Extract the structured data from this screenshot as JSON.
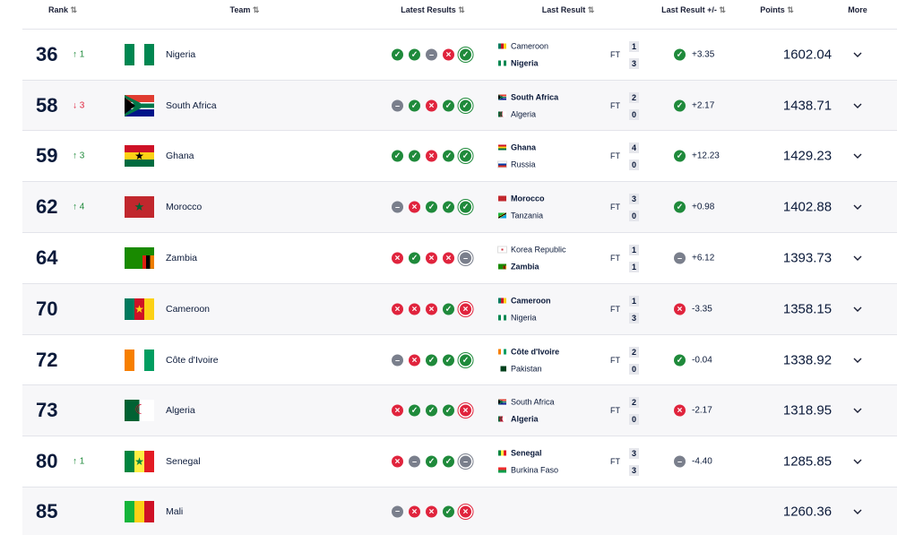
{
  "header": {
    "columns": [
      "Rank",
      "Team",
      "Latest Results",
      "Last Result",
      "Last Result +/-",
      "Points",
      "More"
    ]
  },
  "rows": [
    {
      "rank": 36,
      "change": 1,
      "team": "Nigeria",
      "last": {
        "home": "Cameroon",
        "away": "Nigeria",
        "status": "FT",
        "home_score": 1,
        "away_score": 3
      },
      "diff": "+3.35",
      "points": 1602.04
    },
    {
      "rank": 58,
      "change": 3,
      "team": "South Africa",
      "last": {
        "home": "South Africa",
        "away": "Algeria",
        "status": "FT",
        "home_score": 2,
        "away_score": 0
      },
      "diff": "+2.17",
      "points": 1438.71
    },
    {
      "rank": 59,
      "change": 3,
      "team": "Ghana",
      "last": {
        "home": "Ghana",
        "away": "Russia",
        "status": "FT",
        "home_score": 4,
        "away_score": 0
      },
      "diff": "+12.23",
      "points": 1429.23
    },
    {
      "rank": 62,
      "change": 4,
      "team": "Morocco",
      "last": {
        "home": "Morocco",
        "away": "Tanzania",
        "status": "FT",
        "home_score": 3,
        "away_score": 0
      },
      "diff": "+0.98",
      "points": 1402.88
    },
    {
      "rank": 64,
      "team": "Zambia",
      "last": {
        "home": "Korea Republic",
        "away": "Zambia",
        "status": "FT",
        "home_score": 1,
        "away_score": 1
      },
      "diff": "+6.12",
      "points": 1393.73
    },
    {
      "rank": 70,
      "team": "Cameroon",
      "last": {
        "home": "Cameroon",
        "away": "Nigeria",
        "status": "FT",
        "home_score": 1,
        "away_score": 3
      },
      "diff": "-3.35",
      "points": 1358.15
    },
    {
      "rank": 72,
      "team": "Côte d'Ivoire",
      "last": {
        "home": "Côte d'Ivoire",
        "away": "Pakistan",
        "status": "FT",
        "home_score": 2,
        "away_score": 0
      },
      "diff": "-0.04",
      "points": 1338.92
    },
    {
      "rank": 73,
      "team": "Algeria",
      "last": {
        "home": "South Africa",
        "away": "Algeria",
        "status": "FT",
        "home_score": 2,
        "away_score": 0
      },
      "diff": "-2.17",
      "points": 1318.95
    },
    {
      "rank": 80,
      "change": 1,
      "team": "Senegal",
      "last": {
        "home": "Senegal",
        "away": "Burkina Faso",
        "status": "FT",
        "home_score": 3,
        "away_score": 3
      },
      "diff": "-4.40",
      "points": 1285.85
    },
    {
      "rank": 85,
      "team": "Mali",
      "points": 1260.36
    }
  ]
}
